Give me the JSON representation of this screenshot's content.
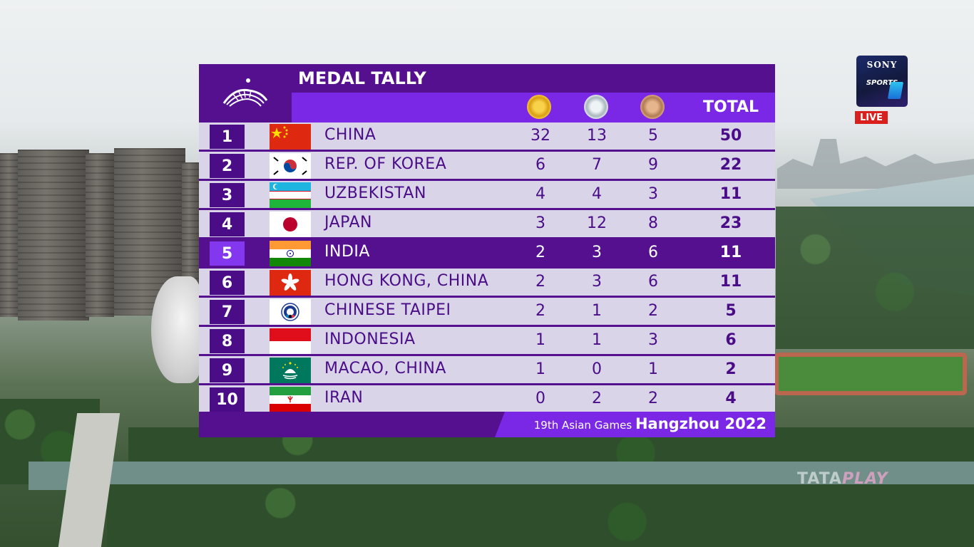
{
  "broadcast": {
    "network_logo": {
      "brand": "SONY",
      "channel": "SPORTS",
      "channel_number": "1",
      "icon": "sony-sports-ten-logo"
    },
    "live_label": "LIVE",
    "watermark": {
      "part1": "TATA",
      "part2": "PLAY"
    }
  },
  "tally": {
    "title": "MEDAL TALLY",
    "emblem_icon": "asian-games-emblem",
    "columns": {
      "gold_icon": "gold-medal-icon",
      "silver_icon": "silver-medal-icon",
      "bronze_icon": "bronze-medal-icon",
      "total": "TOTAL"
    },
    "rows": [
      {
        "rank": "1",
        "country": "CHINA",
        "flag": "china-flag",
        "gold": "32",
        "silver": "13",
        "bronze": "5",
        "total": "50",
        "highlight": false
      },
      {
        "rank": "2",
        "country": "REP. OF KOREA",
        "flag": "korea-flag",
        "gold": "6",
        "silver": "7",
        "bronze": "9",
        "total": "22",
        "highlight": false
      },
      {
        "rank": "3",
        "country": "UZBEKISTAN",
        "flag": "uzbekistan-flag",
        "gold": "4",
        "silver": "4",
        "bronze": "3",
        "total": "11",
        "highlight": false
      },
      {
        "rank": "4",
        "country": "JAPAN",
        "flag": "japan-flag",
        "gold": "3",
        "silver": "12",
        "bronze": "8",
        "total": "23",
        "highlight": false
      },
      {
        "rank": "5",
        "country": "INDIA",
        "flag": "india-flag",
        "gold": "2",
        "silver": "3",
        "bronze": "6",
        "total": "11",
        "highlight": true
      },
      {
        "rank": "6",
        "country": "HONG KONG, CHINA",
        "flag": "hong-kong-flag",
        "gold": "2",
        "silver": "3",
        "bronze": "6",
        "total": "11",
        "highlight": false
      },
      {
        "rank": "7",
        "country": "CHINESE TAIPEI",
        "flag": "chinese-taipei-flag",
        "gold": "2",
        "silver": "1",
        "bronze": "2",
        "total": "5",
        "highlight": false
      },
      {
        "rank": "8",
        "country": "INDONESIA",
        "flag": "indonesia-flag",
        "gold": "1",
        "silver": "1",
        "bronze": "3",
        "total": "6",
        "highlight": false
      },
      {
        "rank": "9",
        "country": "MACAO, CHINA",
        "flag": "macao-flag",
        "gold": "1",
        "silver": "0",
        "bronze": "1",
        "total": "2",
        "highlight": false
      },
      {
        "rank": "10",
        "country": "IRAN",
        "flag": "iran-flag",
        "gold": "0",
        "silver": "2",
        "bronze": "2",
        "total": "4",
        "highlight": false
      }
    ],
    "footer": {
      "event": "19th Asian Games",
      "city_year": "Hangzhou 2022"
    }
  },
  "colors": {
    "panel_dark": "#54108f",
    "panel_accent": "#7a28e6",
    "row_bg": "#d9d4e8",
    "live_red": "#d9201c"
  }
}
